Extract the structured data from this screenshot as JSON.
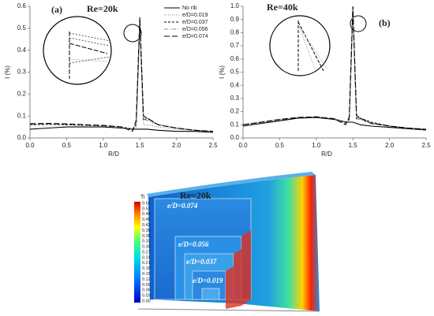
{
  "chart_data": [
    {
      "type": "line",
      "panel": "(a)",
      "title": "Re=20k",
      "xlabel": "R/D",
      "ylabel": "I (%)",
      "xlim": [
        0,
        2.5
      ],
      "xticks": [
        {
          "value": 0,
          "label": "0.0"
        },
        0.5,
        {
          "value": 1,
          "label": "1.0"
        },
        1.5,
        {
          "value": 2,
          "label": "2.0"
        },
        2.5
      ],
      "ylim": [
        0,
        0.6
      ],
      "yticks": [
        {
          "value": 0,
          "label": "0.0"
        },
        0.1,
        0.2,
        0.3,
        0.4,
        0.5,
        0.6
      ],
      "legend": "upper right",
      "x": [
        0,
        0.25,
        0.5,
        0.75,
        1.0,
        1.25,
        1.4,
        1.45,
        1.5,
        1.55,
        1.6,
        1.75,
        2.0,
        2.25,
        2.5
      ],
      "series": [
        {
          "name": "No rib",
          "color": "#000000",
          "style": "solid",
          "values": [
            0.04,
            0.045,
            0.05,
            0.05,
            0.05,
            0.045,
            0.04,
            0.04,
            0.04,
            0.04,
            0.04,
            0.035,
            0.03,
            0.03,
            0.025
          ]
        },
        {
          "name": "e/D=0.019",
          "color": "#888888",
          "style": "dotted",
          "values": [
            0.06,
            0.062,
            0.06,
            0.058,
            0.055,
            0.05,
            0.04,
            0.05,
            0.5,
            0.06,
            0.06,
            0.05,
            0.04,
            0.035,
            0.03
          ]
        },
        {
          "name": "e/D=0.037",
          "color": "#000000",
          "style": "dashed",
          "values": [
            0.06,
            0.062,
            0.06,
            0.058,
            0.055,
            0.05,
            0.04,
            0.06,
            0.53,
            0.08,
            0.09,
            0.06,
            0.045,
            0.035,
            0.03
          ]
        },
        {
          "name": "e/D=0.056",
          "color": "#888888",
          "style": "dashdot",
          "values": [
            0.062,
            0.064,
            0.062,
            0.059,
            0.056,
            0.05,
            0.035,
            0.07,
            0.54,
            0.09,
            0.08,
            0.06,
            0.045,
            0.035,
            0.03
          ]
        },
        {
          "name": "e/D=0.074",
          "color": "#000000",
          "style": "longdash",
          "values": [
            0.065,
            0.066,
            0.064,
            0.06,
            0.057,
            0.05,
            0.03,
            0.08,
            0.55,
            0.1,
            0.09,
            0.06,
            0.045,
            0.035,
            0.03
          ]
        }
      ]
    },
    {
      "type": "line",
      "panel": "(b)",
      "title": "Re=40k",
      "xlabel": "R/D",
      "ylabel": "I (%)",
      "xlim": [
        0,
        2.5
      ],
      "xticks": [
        {
          "value": 0,
          "label": "0.0"
        },
        0.5,
        {
          "value": 1,
          "label": "1.0"
        },
        1.5,
        {
          "value": 2,
          "label": "2.0"
        },
        2.5
      ],
      "ylim": [
        0,
        1.0
      ],
      "yticks": [
        {
          "value": 0,
          "label": "0.0"
        },
        0.1,
        0.2,
        0.3,
        0.4,
        0.5,
        0.6,
        0.7,
        0.8,
        0.9,
        {
          "value": 1,
          "label": "1.0"
        }
      ],
      "x": [
        0,
        0.25,
        0.5,
        0.75,
        1.0,
        1.25,
        1.4,
        1.45,
        1.5,
        1.55,
        1.6,
        1.75,
        2.0,
        2.25,
        2.5
      ],
      "series": [
        {
          "color": "#000000",
          "style": "solid",
          "values": [
            0.09,
            0.11,
            0.13,
            0.15,
            0.155,
            0.14,
            0.12,
            0.12,
            0.12,
            0.11,
            0.1,
            0.09,
            0.08,
            0.07,
            0.06
          ]
        },
        {
          "color": "#888888",
          "style": "dotted",
          "values": [
            0.1,
            0.12,
            0.14,
            0.155,
            0.16,
            0.145,
            0.12,
            0.13,
            0.97,
            0.14,
            0.14,
            0.11,
            0.09,
            0.075,
            0.065
          ]
        },
        {
          "color": "#000000",
          "style": "dashed",
          "values": [
            0.1,
            0.12,
            0.14,
            0.155,
            0.16,
            0.145,
            0.12,
            0.14,
            0.98,
            0.15,
            0.15,
            0.12,
            0.09,
            0.075,
            0.065
          ]
        },
        {
          "color": "#888888",
          "style": "dashdot",
          "values": [
            0.1,
            0.12,
            0.14,
            0.155,
            0.16,
            0.145,
            0.11,
            0.15,
            0.99,
            0.16,
            0.14,
            0.11,
            0.09,
            0.075,
            0.065
          ]
        },
        {
          "color": "#000000",
          "style": "longdash",
          "values": [
            0.1,
            0.12,
            0.14,
            0.155,
            0.16,
            0.145,
            0.1,
            0.16,
            1.0,
            0.17,
            0.15,
            0.11,
            0.09,
            0.075,
            0.065
          ]
        }
      ]
    }
  ],
  "figure_c": {
    "title": "Re=20k",
    "colorbar_label": "Ti",
    "colorbar_ticks": [
      "0.54",
      "0.51",
      "0.48",
      "0.45",
      "0.42",
      "0.39",
      "0.36",
      "0.33",
      "0.30",
      "0.27",
      "0.24",
      "0.21",
      "0.18",
      "0.15",
      "0.12",
      "0.09",
      "0.06",
      "0.03",
      "0.00"
    ],
    "labels": [
      "e/D=0.074",
      "e/D=0.056",
      "e/D=0.037",
      "e/D=0.019"
    ]
  }
}
